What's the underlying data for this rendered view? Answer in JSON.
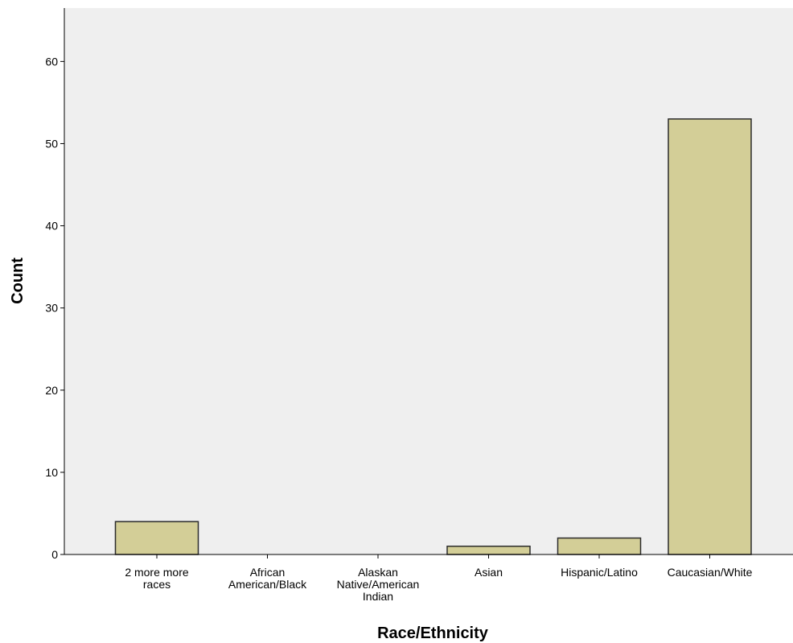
{
  "chart_data": {
    "type": "bar",
    "title": "",
    "xlabel": "Race/Ethnicity",
    "ylabel": "Count",
    "categories": [
      "2 more more races",
      "African American/Black",
      "Alaskan Native/American Indian",
      "Asian",
      "Hispanic/Latino",
      "Caucasian/White"
    ],
    "category_label_lines": [
      [
        "2 more more",
        "races"
      ],
      [
        "African",
        "American/Black"
      ],
      [
        "Alaskan",
        "Native/American",
        "Indian"
      ],
      [
        "Asian"
      ],
      [
        "Hispanic/Latino"
      ],
      [
        "Caucasian/White"
      ]
    ],
    "values": [
      4,
      0,
      0,
      1,
      2,
      53
    ],
    "ylim": [
      0,
      66.5
    ],
    "yticks": [
      0,
      10,
      20,
      30,
      40,
      50,
      60
    ],
    "grid": false,
    "legend": "none",
    "colors": {
      "bar_fill": "#d3ce97",
      "bar_stroke": "#2b2b2b",
      "plot_background": "#efefef",
      "axis": "#000000"
    }
  }
}
